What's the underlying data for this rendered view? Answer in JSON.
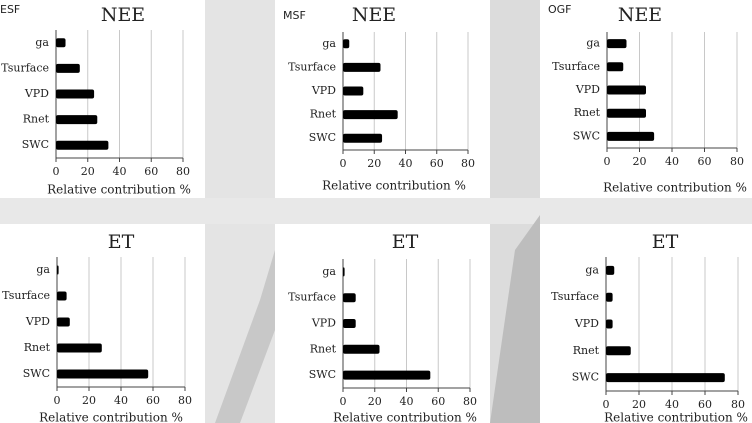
{
  "chart_data": [
    {
      "type": "bar",
      "horizontal": true,
      "label": "ESF",
      "title": "NEE",
      "x_label": "Relative contribution %",
      "categories": [
        "ga",
        "Tsurface",
        "VPD",
        "Rnet",
        "SWC"
      ],
      "values": [
        6,
        15,
        24,
        26,
        33
      ],
      "color": "#000000",
      "xlim": [
        0,
        80
      ],
      "xticks": [
        0,
        20,
        40,
        60,
        80
      ],
      "grid": true
    },
    {
      "type": "bar",
      "horizontal": true,
      "label": "MSF",
      "title": "NEE",
      "x_label": "Relative contribution %",
      "categories": [
        "ga",
        "Tsurface",
        "VPD",
        "Rnet",
        "SWC"
      ],
      "values": [
        4,
        24,
        13,
        35,
        25
      ],
      "color": "#000000",
      "xlim": [
        0,
        80
      ],
      "xticks": [
        0,
        20,
        40,
        60,
        80
      ],
      "grid": true
    },
    {
      "type": "bar",
      "horizontal": true,
      "label": "OGF",
      "title": "NEE",
      "x_label": "Relative contribution %",
      "categories": [
        "ga",
        "Tsurface",
        "VPD",
        "Rnet",
        "SWC"
      ],
      "values": [
        12,
        10,
        24,
        24,
        29
      ],
      "color": "#000000",
      "xlim": [
        0,
        80
      ],
      "xticks": [
        0,
        20,
        40,
        60,
        80
      ],
      "grid": true
    },
    {
      "type": "bar",
      "horizontal": true,
      "title": "ET",
      "x_label": "Relative contribution %",
      "categories": [
        "ga",
        "Tsurface",
        "VPD",
        "Rnet",
        "SWC"
      ],
      "values": [
        1,
        6,
        8,
        28,
        57
      ],
      "color": "#000000",
      "xlim": [
        0,
        80
      ],
      "xticks": [
        0,
        20,
        40,
        60,
        80
      ],
      "grid": true
    },
    {
      "type": "bar",
      "horizontal": true,
      "title": "ET",
      "x_label": "Relative contribution %",
      "categories": [
        "ga",
        "Tsurface",
        "VPD",
        "Rnet",
        "SWC"
      ],
      "values": [
        1,
        8,
        8,
        23,
        55
      ],
      "color": "#000000",
      "xlim": [
        0,
        80
      ],
      "xticks": [
        0,
        20,
        40,
        60,
        80
      ],
      "grid": true
    },
    {
      "type": "bar",
      "horizontal": true,
      "title": "ET",
      "x_label": "Relative contribution %",
      "categories": [
        "ga",
        "Tsurface",
        "VPD",
        "Rnet",
        "SWC"
      ],
      "values": [
        5,
        4,
        4,
        15,
        72
      ],
      "color": "#000000",
      "xlim": [
        0,
        80
      ],
      "xticks": [
        0,
        20,
        40,
        60,
        80
      ],
      "grid": true
    }
  ]
}
